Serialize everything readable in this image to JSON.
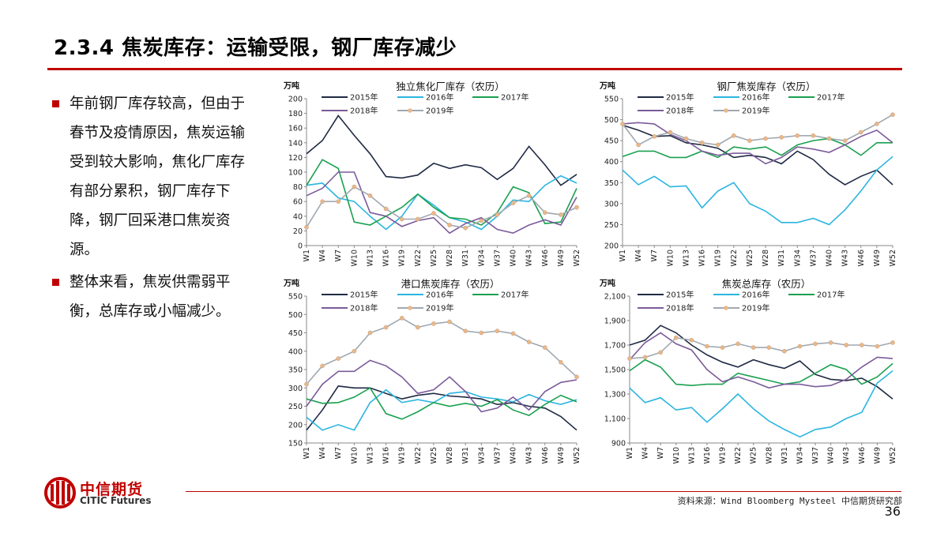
{
  "slide": {
    "title": "2.3.4 焦炭库存：运输受限，钢厂库存减少",
    "bullets": [
      "年前钢厂库存较高，但由于春节及疫情原因，焦炭运输受到较大影响，焦化厂库存有部分累积，钢厂库存下降，钢厂回采港口焦炭资源。",
      "整体来看，焦炭供需弱平衡，总库存或小幅减少。"
    ],
    "source": "资料来源：Wind Bloomberg Mysteel 中信期货研究部",
    "page_number": "36",
    "logo": {
      "cn": "中信期货",
      "en": "CITIC Futures"
    },
    "accent_color": "#c00000"
  },
  "series_colors": {
    "2015年": "#1f2a44",
    "2016年": "#2bb5e0",
    "2017年": "#1aa050",
    "2018年": "#7b5b9a",
    "2019年": "#a0a8b0",
    "2019_marker": "#e8b88a"
  },
  "chart_data": [
    {
      "type": "line",
      "title": "独立焦化厂库存（农历）",
      "ylabel": "万吨",
      "ylim": [
        0,
        200
      ],
      "yticks": [
        "0",
        "20",
        "40",
        "60",
        "80",
        "100",
        "120",
        "140",
        "160",
        "180",
        "200"
      ],
      "ytick_values": [
        0,
        20,
        40,
        60,
        80,
        100,
        120,
        140,
        160,
        180,
        200
      ],
      "categories": [
        "W1",
        "W4",
        "W7",
        "W10",
        "W13",
        "W16",
        "W19",
        "W22",
        "W25",
        "W28",
        "W31",
        "W34",
        "W37",
        "W40",
        "W43",
        "W46",
        "W49",
        "W52"
      ],
      "x": [
        1,
        4,
        7,
        10,
        13,
        16,
        19,
        22,
        25,
        28,
        31,
        34,
        37,
        40,
        43,
        46,
        49,
        52
      ],
      "legend": "top",
      "series": [
        {
          "name": "2015年",
          "values": [
            125,
            143,
            177,
            150,
            125,
            94,
            92,
            96,
            112,
            105,
            110,
            106,
            90,
            105,
            135,
            110,
            82,
            97
          ]
        },
        {
          "name": "2016年",
          "values": [
            82,
            85,
            65,
            60,
            40,
            22,
            40,
            70,
            55,
            38,
            32,
            22,
            40,
            62,
            60,
            82,
            95,
            85
          ]
        },
        {
          "name": "2017年",
          "values": [
            82,
            117,
            105,
            32,
            28,
            40,
            52,
            70,
            52,
            38,
            36,
            28,
            45,
            80,
            72,
            30,
            32,
            78
          ]
        },
        {
          "name": "2018年",
          "values": [
            68,
            78,
            100,
            100,
            45,
            40,
            26,
            34,
            38,
            17,
            30,
            38,
            22,
            17,
            28,
            35,
            28,
            66
          ]
        },
        {
          "name": "2019年",
          "values": [
            25,
            60,
            60,
            80,
            68,
            50,
            36,
            36,
            44,
            28,
            24,
            34,
            42,
            58,
            68,
            45,
            42,
            52
          ]
        }
      ]
    },
    {
      "type": "line",
      "title": "钢厂焦炭库存（农历）",
      "ylabel": "万吨",
      "ylim": [
        200,
        550
      ],
      "yticks": [
        "200",
        "250",
        "300",
        "350",
        "400",
        "450",
        "500",
        "550"
      ],
      "ytick_values": [
        200,
        250,
        300,
        350,
        400,
        450,
        500,
        550
      ],
      "categories": [
        "W1",
        "W4",
        "W7",
        "W10",
        "W13",
        "W16",
        "W19",
        "W22",
        "W25",
        "W28",
        "W31",
        "W34",
        "W37",
        "W40",
        "W43",
        "W46",
        "W49",
        "W52"
      ],
      "x": [
        1,
        4,
        7,
        10,
        13,
        16,
        19,
        22,
        25,
        28,
        31,
        34,
        37,
        40,
        43,
        46,
        49,
        52
      ],
      "legend": "top",
      "series": [
        {
          "name": "2015年",
          "values": [
            487,
            475,
            460,
            462,
            445,
            440,
            432,
            410,
            415,
            410,
            395,
            425,
            405,
            370,
            345,
            365,
            380,
            345
          ]
        },
        {
          "name": "2016年",
          "values": [
            380,
            345,
            365,
            340,
            342,
            290,
            330,
            350,
            300,
            282,
            255,
            255,
            265,
            250,
            285,
            330,
            380,
            412
          ]
        },
        {
          "name": "2017年",
          "values": [
            412,
            425,
            425,
            410,
            410,
            425,
            410,
            435,
            430,
            435,
            415,
            440,
            450,
            455,
            440,
            415,
            445,
            445
          ]
        },
        {
          "name": "2018年",
          "values": [
            490,
            493,
            490,
            465,
            450,
            425,
            415,
            420,
            420,
            395,
            410,
            435,
            430,
            422,
            440,
            460,
            475,
            445
          ]
        },
        {
          "name": "2019年",
          "values": [
            490,
            440,
            460,
            470,
            455,
            445,
            440,
            462,
            450,
            455,
            458,
            462,
            462,
            455,
            450,
            470,
            490,
            512
          ]
        }
      ]
    },
    {
      "type": "line",
      "title": "港口焦炭库存（农历）",
      "ylabel": "万吨",
      "ylim": [
        150,
        550
      ],
      "yticks": [
        "150",
        "200",
        "250",
        "300",
        "350",
        "400",
        "450",
        "500",
        "550"
      ],
      "ytick_values": [
        150,
        200,
        250,
        300,
        350,
        400,
        450,
        500,
        550
      ],
      "categories": [
        "W1",
        "W4",
        "W7",
        "W10",
        "W13",
        "W16",
        "W19",
        "W22",
        "W25",
        "W28",
        "W31",
        "W34",
        "W37",
        "W40",
        "W43",
        "W46",
        "W49",
        "W52"
      ],
      "x": [
        1,
        4,
        7,
        10,
        13,
        16,
        19,
        22,
        25,
        28,
        31,
        34,
        37,
        40,
        43,
        46,
        49,
        52
      ],
      "legend": "top",
      "series": [
        {
          "name": "2015年",
          "values": [
            185,
            240,
            305,
            300,
            300,
            285,
            270,
            280,
            285,
            278,
            275,
            270,
            255,
            260,
            250,
            245,
            222,
            185
          ]
        },
        {
          "name": "2016年",
          "values": [
            220,
            185,
            200,
            185,
            260,
            295,
            260,
            268,
            260,
            285,
            290,
            275,
            270,
            262,
            282,
            265,
            255,
            268
          ]
        },
        {
          "name": "2017年",
          "values": [
            270,
            258,
            260,
            275,
            300,
            230,
            215,
            235,
            260,
            250,
            258,
            250,
            268,
            240,
            225,
            255,
            280,
            262
          ]
        },
        {
          "name": "2018年",
          "values": [
            250,
            310,
            345,
            345,
            375,
            360,
            330,
            285,
            295,
            330,
            290,
            235,
            245,
            275,
            240,
            290,
            315,
            322
          ]
        },
        {
          "name": "2019年",
          "values": [
            310,
            360,
            380,
            400,
            450,
            465,
            490,
            465,
            475,
            480,
            455,
            450,
            455,
            448,
            425,
            410,
            370,
            330
          ]
        }
      ]
    },
    {
      "type": "line",
      "title": "焦炭总库存（农历）",
      "ylabel": "万吨",
      "ylim": [
        900,
        2100
      ],
      "yticks": [
        "900",
        "1,100",
        "1,300",
        "1,500",
        "1,700",
        "1,900",
        "2,100"
      ],
      "ytick_values": [
        900,
        1100,
        1300,
        1500,
        1700,
        1900,
        2100
      ],
      "categories": [
        "W1",
        "W4",
        "W7",
        "W10",
        "W13",
        "W16",
        "W19",
        "W22",
        "W25",
        "W28",
        "W31",
        "W34",
        "W37",
        "W40",
        "W43",
        "W46",
        "W49",
        "W52"
      ],
      "x": [
        1,
        4,
        7,
        10,
        13,
        16,
        19,
        22,
        25,
        28,
        31,
        34,
        37,
        40,
        43,
        46,
        49,
        52
      ],
      "legend": "top",
      "series": [
        {
          "name": "2015年",
          "values": [
            1700,
            1740,
            1860,
            1800,
            1700,
            1620,
            1560,
            1520,
            1580,
            1540,
            1510,
            1570,
            1460,
            1420,
            1410,
            1430,
            1360,
            1260
          ]
        },
        {
          "name": "2016年",
          "values": [
            1350,
            1230,
            1270,
            1170,
            1190,
            1070,
            1180,
            1300,
            1180,
            1080,
            1010,
            950,
            1010,
            1030,
            1100,
            1150,
            1390,
            1490
          ]
        },
        {
          "name": "2017年",
          "values": [
            1490,
            1580,
            1520,
            1380,
            1370,
            1380,
            1380,
            1470,
            1440,
            1410,
            1380,
            1400,
            1470,
            1540,
            1500,
            1380,
            1440,
            1550
          ]
        },
        {
          "name": "2018年",
          "values": [
            1580,
            1720,
            1800,
            1710,
            1660,
            1500,
            1400,
            1440,
            1400,
            1350,
            1380,
            1380,
            1360,
            1370,
            1420,
            1520,
            1600,
            1590
          ]
        },
        {
          "name": "2019年",
          "values": [
            1590,
            1600,
            1640,
            1760,
            1740,
            1690,
            1680,
            1710,
            1680,
            1680,
            1650,
            1690,
            1710,
            1720,
            1700,
            1700,
            1690,
            1720
          ]
        }
      ]
    }
  ]
}
